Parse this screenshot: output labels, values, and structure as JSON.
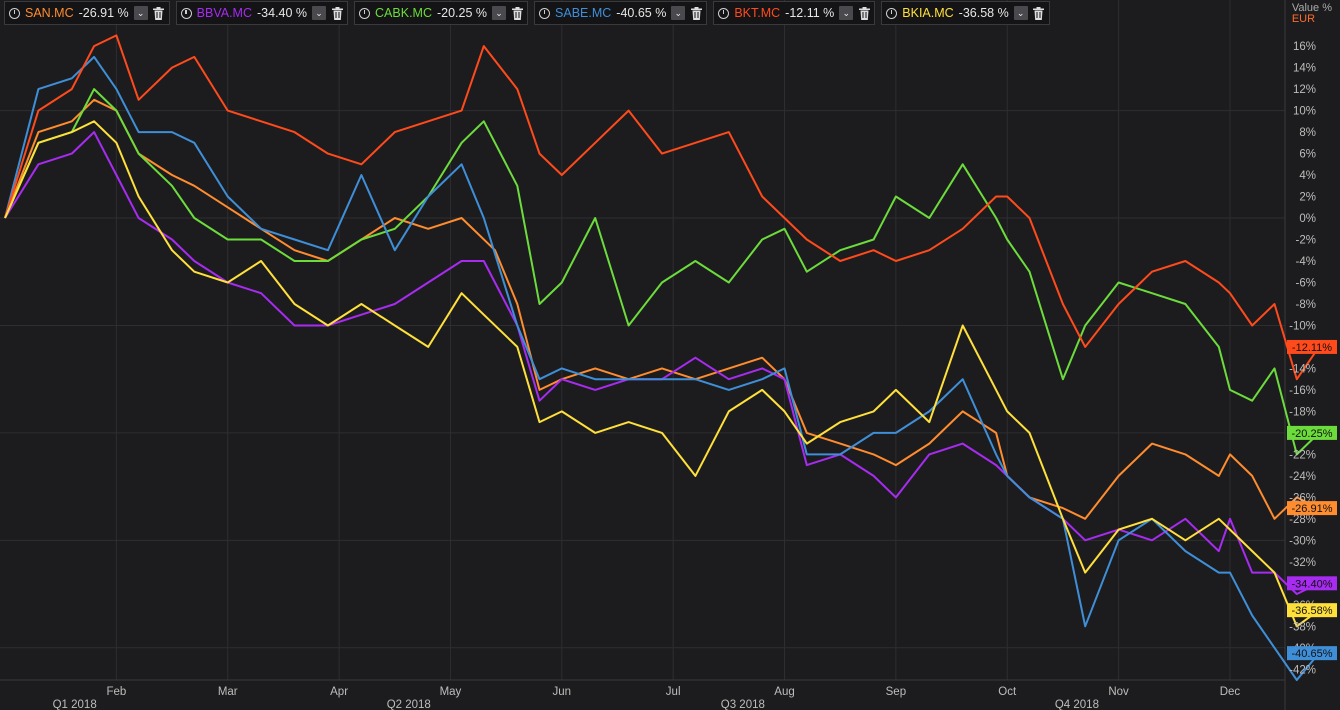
{
  "legend": [
    {
      "symbol": "SAN.MC",
      "change": "-26.91 %",
      "color": "#ff8c2e"
    },
    {
      "symbol": "BBVA.MC",
      "change": "-34.40 %",
      "color": "#a72bf0"
    },
    {
      "symbol": "CABK.MC",
      "change": "-20.25 %",
      "color": "#6cdc3c"
    },
    {
      "symbol": "SABE.MC",
      "change": "-40.65 %",
      "color": "#3f8fd8"
    },
    {
      "symbol": "BKT.MC",
      "change": "-12.11 %",
      "color": "#ff4a1c"
    },
    {
      "symbol": "BKIA.MC",
      "change": "-36.58 %",
      "color": "#ffe03a"
    }
  ],
  "axis_header": {
    "value_label": "Value %",
    "currency": "EUR"
  },
  "chart_data": {
    "type": "line",
    "ylabel": "Value %",
    "ylim": [
      -43,
      17.5
    ],
    "y_ticks": [
      "16%",
      "14%",
      "12%",
      "10%",
      "8%",
      "6%",
      "4%",
      "2%",
      "0%",
      "-2%",
      "-4%",
      "-6%",
      "-8%",
      "-10%",
      "-12%",
      "-14%",
      "-16%",
      "-18%",
      "-20%",
      "-22%",
      "-24%",
      "-26%",
      "-28%",
      "-30%",
      "-32%",
      "-34%",
      "-36%",
      "-38%",
      "-40%",
      "-42%"
    ],
    "y_tick_values": [
      16,
      14,
      12,
      10,
      8,
      6,
      4,
      2,
      0,
      -2,
      -4,
      -6,
      -8,
      -10,
      -12,
      -14,
      -16,
      -18,
      -20,
      -22,
      -24,
      -26,
      -28,
      -30,
      -32,
      -34,
      -36,
      -38,
      -40,
      -42
    ],
    "xlim": [
      0,
      12
    ],
    "month_ticks": [
      {
        "label": "Feb",
        "x": 1
      },
      {
        "label": "Mar",
        "x": 2
      },
      {
        "label": "Apr",
        "x": 3
      },
      {
        "label": "May",
        "x": 4
      },
      {
        "label": "Jun",
        "x": 5
      },
      {
        "label": "Jul",
        "x": 6
      },
      {
        "label": "Aug",
        "x": 7
      },
      {
        "label": "Sep",
        "x": 8
      },
      {
        "label": "Oct",
        "x": 9
      },
      {
        "label": "Nov",
        "x": 10
      },
      {
        "label": "Dec",
        "x": 11
      }
    ],
    "quarter_ticks": [
      {
        "label": "Q1 2018",
        "x": 0.5
      },
      {
        "label": "Q2 2018",
        "x": 3.5
      },
      {
        "label": "Q3 2018",
        "x": 6.5
      },
      {
        "label": "Q4 2018",
        "x": 9.5
      }
    ],
    "series": [
      {
        "name": "SAN.MC",
        "color": "#ff8c2e",
        "last_label": "-26.91%",
        "x": [
          0,
          0.3,
          0.6,
          0.8,
          1.0,
          1.2,
          1.5,
          1.7,
          2.0,
          2.3,
          2.6,
          2.9,
          3.2,
          3.5,
          3.8,
          4.1,
          4.4,
          4.6,
          4.8,
          5.0,
          5.3,
          5.6,
          5.9,
          6.2,
          6.5,
          6.8,
          7.0,
          7.2,
          7.5,
          7.8,
          8.0,
          8.3,
          8.6,
          8.9,
          9.0,
          9.2,
          9.5,
          9.7,
          10.0,
          10.3,
          10.6,
          10.9,
          11.0,
          11.2,
          11.4,
          11.6,
          11.8
        ],
        "y": [
          0,
          8,
          9,
          11,
          10,
          6,
          4,
          3,
          1,
          -1,
          -3,
          -4,
          -2,
          0,
          -1,
          0,
          -3,
          -8,
          -16,
          -15,
          -14,
          -15,
          -14,
          -15,
          -14,
          -13,
          -15,
          -20,
          -21,
          -22,
          -23,
          -21,
          -18,
          -20,
          -24,
          -26,
          -27,
          -28,
          -24,
          -21,
          -22,
          -24,
          -22,
          -24,
          -28,
          -26,
          -27
        ]
      },
      {
        "name": "BBVA.MC",
        "color": "#a72bf0",
        "last_label": "-34.40%",
        "x": [
          0,
          0.3,
          0.6,
          0.8,
          1.0,
          1.2,
          1.5,
          1.7,
          2.0,
          2.3,
          2.6,
          2.9,
          3.2,
          3.5,
          3.8,
          4.1,
          4.3,
          4.6,
          4.8,
          5.0,
          5.3,
          5.6,
          5.9,
          6.2,
          6.5,
          6.8,
          7.0,
          7.2,
          7.5,
          7.8,
          8.0,
          8.3,
          8.6,
          8.9,
          9.0,
          9.2,
          9.5,
          9.7,
          10.0,
          10.3,
          10.6,
          10.9,
          11.0,
          11.2,
          11.4,
          11.6,
          11.8
        ],
        "y": [
          0,
          5,
          6,
          8,
          4,
          0,
          -2,
          -4,
          -6,
          -7,
          -10,
          -10,
          -9,
          -8,
          -6,
          -4,
          -4,
          -10,
          -17,
          -15,
          -16,
          -15,
          -15,
          -13,
          -15,
          -14,
          -15,
          -23,
          -22,
          -24,
          -26,
          -22,
          -21,
          -23,
          -24,
          -26,
          -28,
          -30,
          -29,
          -30,
          -28,
          -31,
          -28,
          -33,
          -33,
          -35,
          -34
        ]
      },
      {
        "name": "CABK.MC",
        "color": "#6cdc3c",
        "last_label": "-20.25%",
        "x": [
          0,
          0.3,
          0.6,
          0.8,
          1.0,
          1.2,
          1.5,
          1.7,
          2.0,
          2.3,
          2.6,
          2.9,
          3.2,
          3.5,
          3.8,
          4.1,
          4.3,
          4.6,
          4.8,
          5.0,
          5.3,
          5.6,
          5.9,
          6.2,
          6.5,
          6.8,
          7.0,
          7.2,
          7.5,
          7.8,
          8.0,
          8.3,
          8.6,
          8.9,
          9.0,
          9.2,
          9.5,
          9.7,
          10.0,
          10.3,
          10.6,
          10.9,
          11.0,
          11.2,
          11.4,
          11.6,
          11.8
        ],
        "y": [
          0,
          7,
          8,
          12,
          10,
          6,
          3,
          0,
          -2,
          -2,
          -4,
          -4,
          -2,
          -1,
          2,
          7,
          9,
          3,
          -8,
          -6,
          0,
          -10,
          -6,
          -4,
          -6,
          -2,
          -1,
          -5,
          -3,
          -2,
          2,
          0,
          5,
          0,
          -2,
          -5,
          -15,
          -10,
          -6,
          -7,
          -8,
          -12,
          -16,
          -17,
          -14,
          -22,
          -20
        ]
      },
      {
        "name": "SABE.MC",
        "color": "#3f8fd8",
        "last_label": "-40.65%",
        "x": [
          0,
          0.3,
          0.6,
          0.8,
          1.0,
          1.2,
          1.5,
          1.7,
          2.0,
          2.3,
          2.6,
          2.9,
          3.2,
          3.5,
          3.8,
          4.1,
          4.3,
          4.6,
          4.8,
          5.0,
          5.3,
          5.6,
          5.9,
          6.2,
          6.5,
          6.8,
          7.0,
          7.2,
          7.5,
          7.8,
          8.0,
          8.3,
          8.6,
          8.9,
          9.0,
          9.2,
          9.5,
          9.7,
          10.0,
          10.3,
          10.6,
          10.9,
          11.0,
          11.2,
          11.4,
          11.6,
          11.8
        ],
        "y": [
          0,
          12,
          13,
          15,
          12,
          8,
          8,
          7,
          2,
          -1,
          -2,
          -3,
          4,
          -3,
          2,
          5,
          0,
          -10,
          -15,
          -14,
          -15,
          -15,
          -15,
          -15,
          -16,
          -15,
          -14,
          -22,
          -22,
          -20,
          -20,
          -18,
          -15,
          -22,
          -24,
          -26,
          -28,
          -38,
          -30,
          -28,
          -31,
          -33,
          -33,
          -37,
          -40,
          -43,
          -40.5
        ]
      },
      {
        "name": "BKT.MC",
        "color": "#ff4a1c",
        "last_label": "-12.11%",
        "x": [
          0,
          0.3,
          0.6,
          0.8,
          1.0,
          1.2,
          1.5,
          1.7,
          2.0,
          2.3,
          2.6,
          2.9,
          3.2,
          3.5,
          3.8,
          4.1,
          4.3,
          4.6,
          4.8,
          5.0,
          5.3,
          5.6,
          5.9,
          6.2,
          6.5,
          6.8,
          7.0,
          7.2,
          7.5,
          7.8,
          8.0,
          8.3,
          8.6,
          8.9,
          9.0,
          9.2,
          9.5,
          9.7,
          10.0,
          10.3,
          10.6,
          10.9,
          11.0,
          11.2,
          11.4,
          11.6,
          11.8
        ],
        "y": [
          0,
          10,
          12,
          16,
          17,
          11,
          14,
          15,
          10,
          9,
          8,
          6,
          5,
          8,
          9,
          10,
          16,
          12,
          6,
          4,
          7,
          10,
          6,
          7,
          8,
          2,
          0,
          -2,
          -4,
          -3,
          -4,
          -3,
          -1,
          2,
          2,
          0,
          -8,
          -12,
          -8,
          -5,
          -4,
          -6,
          -7,
          -10,
          -8,
          -15,
          -12
        ]
      },
      {
        "name": "BKIA.MC",
        "color": "#ffe03a",
        "last_label": "-36.58%",
        "x": [
          0,
          0.3,
          0.6,
          0.8,
          1.0,
          1.2,
          1.5,
          1.7,
          2.0,
          2.3,
          2.6,
          2.9,
          3.2,
          3.5,
          3.8,
          4.1,
          4.3,
          4.6,
          4.8,
          5.0,
          5.3,
          5.6,
          5.9,
          6.2,
          6.5,
          6.8,
          7.0,
          7.2,
          7.5,
          7.8,
          8.0,
          8.3,
          8.6,
          8.9,
          9.0,
          9.2,
          9.5,
          9.7,
          10.0,
          10.3,
          10.6,
          10.9,
          11.0,
          11.2,
          11.4,
          11.6,
          11.8
        ],
        "y": [
          0,
          7,
          8,
          9,
          7,
          2,
          -3,
          -5,
          -6,
          -4,
          -8,
          -10,
          -8,
          -10,
          -12,
          -7,
          -9,
          -12,
          -19,
          -18,
          -20,
          -19,
          -20,
          -24,
          -18,
          -16,
          -18,
          -21,
          -19,
          -18,
          -16,
          -19,
          -10,
          -16,
          -18,
          -20,
          -28,
          -33,
          -29,
          -28,
          -30,
          -28,
          -29,
          -31,
          -33,
          -38,
          -36.5
        ]
      }
    ]
  }
}
